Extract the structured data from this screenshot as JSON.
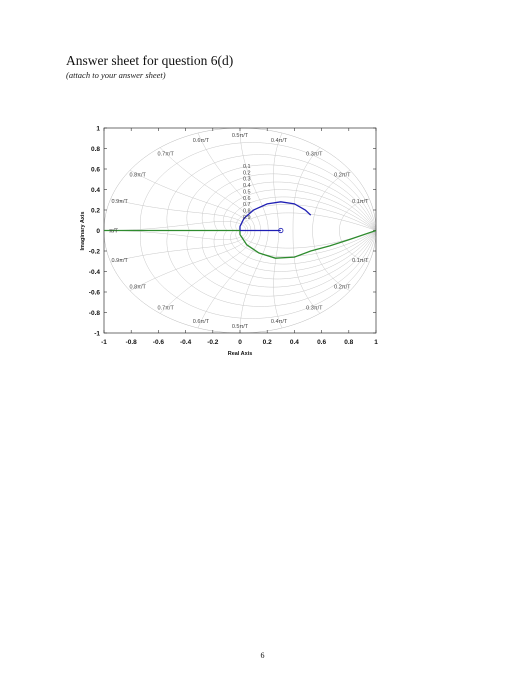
{
  "page": {
    "title": "Answer sheet for question 6(d)",
    "subtitle": "(attach to your answer sheet)",
    "page_number": "6"
  },
  "chart_data": {
    "type": "nyquist-zplane",
    "xlabel": "Real Axis",
    "ylabel": "Imaginary Axis",
    "xlim": [
      -1,
      1
    ],
    "ylim": [
      -1,
      1
    ],
    "x_ticks": [
      "-1",
      "-0.8",
      "-0.6",
      "-0.4",
      "-0.2",
      "0",
      "0.2",
      "0.4",
      "0.6",
      "0.8",
      "1"
    ],
    "y_ticks": [
      "1",
      "0.8",
      "0.6",
      "0.4",
      "0.2",
      "0",
      "-0.2",
      "-0.4",
      "-0.6",
      "-0.8",
      "-1"
    ],
    "grid_damping_labels": [
      "0.1",
      "0.2",
      "0.3",
      "0.4",
      "0.5",
      "0.6",
      "0.7",
      "0.8",
      "0.9"
    ],
    "grid_freq_labels": [
      {
        "text": "0.5π/T",
        "angle": 90
      },
      {
        "text": "0.4π/T",
        "angle": 72
      },
      {
        "text": "0.6π/T",
        "angle": 108
      },
      {
        "text": "0.3π/T",
        "angle": 54
      },
      {
        "text": "0.7π/T",
        "angle": 126
      },
      {
        "text": "0.2π/T",
        "angle": 36
      },
      {
        "text": "0.8π/T",
        "angle": 144
      },
      {
        "text": "0.1π/T",
        "angle": 18
      },
      {
        "text": "0.9π/T",
        "angle": 162
      },
      {
        "text": "π/T",
        "angle": 180
      },
      {
        "text": "0.5π/T",
        "angle": -90
      },
      {
        "text": "0.4π/T",
        "angle": -72
      },
      {
        "text": "0.6π/T",
        "angle": -108
      },
      {
        "text": "0.3π/T",
        "angle": -54
      },
      {
        "text": "0.7π/T",
        "angle": -126
      },
      {
        "text": "0.2π/T",
        "angle": -36
      },
      {
        "text": "0.8π/T",
        "angle": -144
      },
      {
        "text": "0.1π/T",
        "angle": -18
      },
      {
        "text": "0.9π/T",
        "angle": -162
      },
      {
        "text": "π/T",
        "angle": -180
      }
    ],
    "series": [
      {
        "color": "#1f1fb4",
        "points": [
          [
            0,
            0
          ],
          [
            0,
            0.04
          ],
          [
            0.03,
            0.12
          ],
          [
            0.1,
            0.2
          ],
          [
            0.2,
            0.26
          ],
          [
            0.3,
            0.28
          ],
          [
            0.4,
            0.26
          ],
          [
            0.48,
            0.2
          ],
          [
            0.52,
            0.15
          ]
        ]
      },
      {
        "color": "#2e8b2e",
        "points": [
          [
            -1,
            0
          ],
          [
            0,
            0
          ],
          [
            0,
            -0.04
          ],
          [
            0.05,
            -0.14
          ],
          [
            0.14,
            -0.22
          ],
          [
            0.26,
            -0.27
          ],
          [
            0.4,
            -0.26
          ],
          [
            0.52,
            -0.2
          ],
          [
            0.66,
            -0.15
          ],
          [
            0.8,
            -0.09
          ],
          [
            1,
            0
          ]
        ]
      },
      {
        "color": "#1f1fb4",
        "points": [
          [
            0,
            0
          ],
          [
            0.3,
            0
          ]
        ],
        "marker_end": "circle"
      }
    ]
  }
}
